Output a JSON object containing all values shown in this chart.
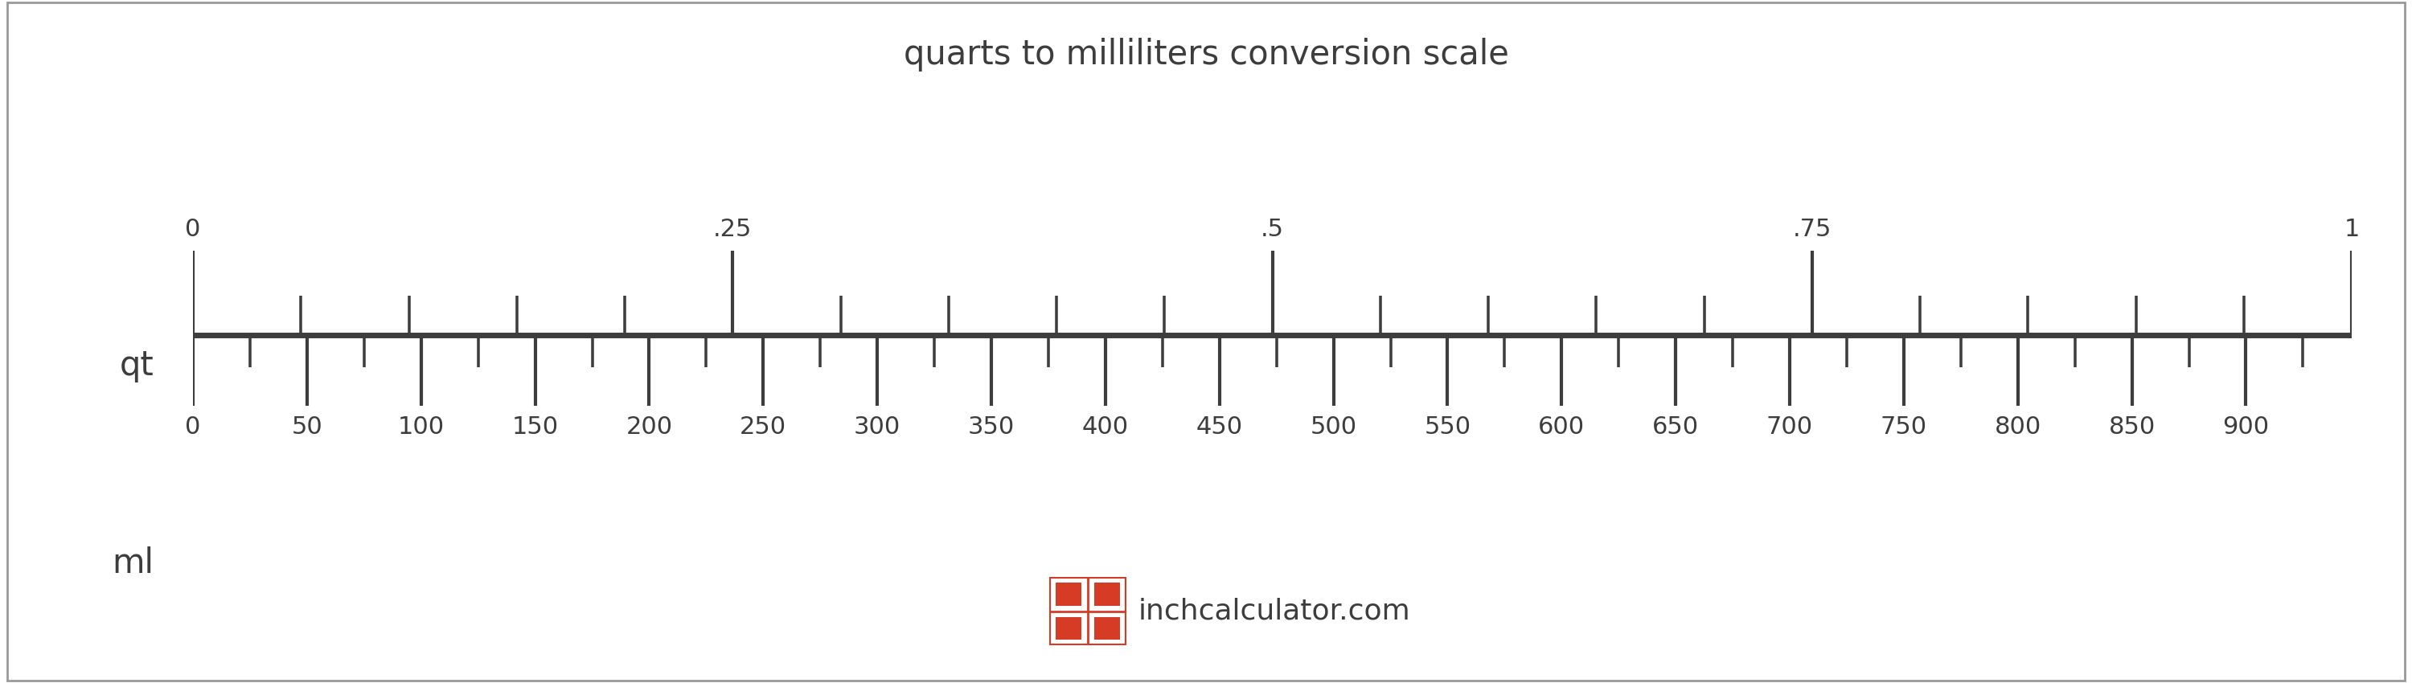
{
  "title": "quarts to milliliters conversion scale",
  "title_fontsize": 30,
  "text_color": "#3d3d3d",
  "bg_color": "#ffffff",
  "border_color": "#999999",
  "scale_line_color": "#3d3d3d",
  "scale_line_lw": 5,
  "qt_label": "qt",
  "ml_label": "ml",
  "qt_major_ticks": [
    0,
    0.25,
    0.5,
    0.75,
    1.0
  ],
  "qt_major_labels": [
    "0",
    ".25",
    ".5",
    ".75",
    "1"
  ],
  "ml_major_ticks": [
    0,
    50,
    100,
    150,
    200,
    250,
    300,
    350,
    400,
    450,
    500,
    550,
    600,
    650,
    700,
    750,
    800,
    850,
    900
  ],
  "logo_text": "inchcalculator.com",
  "logo_fontsize": 26,
  "logo_color": "#3d3d3d",
  "icon_red": "#d63b25",
  "axis_label_fontsize": 30,
  "tick_label_fontsize": 22,
  "qt_to_ml": 946.353
}
